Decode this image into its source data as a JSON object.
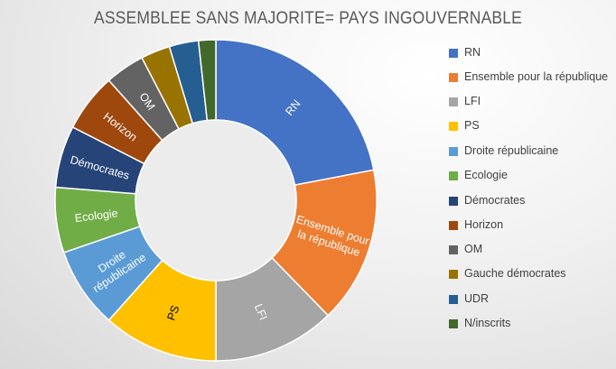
{
  "title": "ASSEMBLEE SANS MAJORITE= PAYS INGOUVERNABLE",
  "chart_data": {
    "type": "pie",
    "subtype": "doughnut",
    "title": "ASSEMBLEE SANS MAJORITE= PAYS INGOUVERNABLE",
    "categories": [
      "RN",
      "Ensemble pour la république",
      "LFI",
      "PS",
      "Droite républicaine",
      "Ecologie",
      "Démocrates",
      "Horizon",
      "OM",
      "Gauche démocrates",
      "UDR",
      "N/inscrits"
    ],
    "values": [
      127,
      91,
      71,
      67,
      47,
      38,
      36,
      34,
      23,
      17,
      17,
      10
    ],
    "colors": [
      "#4472C4",
      "#ED7D31",
      "#A5A5A5",
      "#FFC000",
      "#5B9BD5",
      "#70AD47",
      "#264478",
      "#9E480E",
      "#636363",
      "#997300",
      "#255E91",
      "#43682B"
    ],
    "data_labels": [
      "RN",
      "Ensemble pour\nla république",
      "LFI",
      "PS",
      "Droite\nrépublicaine",
      "Ecologie",
      "Démocrates",
      "Horizon",
      "OM",
      "",
      "",
      ""
    ],
    "label_colors": [
      "#ffffff",
      "#ffffff",
      "#ffffff",
      "#000000",
      "#ffffff",
      "#ffffff",
      "#ffffff",
      "#ffffff",
      "#ffffff",
      "#ffffff",
      "#ffffff",
      "#ffffff"
    ],
    "legend_position": "right",
    "start_angle": 0,
    "hole_ratio": 0.5
  },
  "legend": {
    "items": [
      {
        "label": "RN",
        "color": "#4472C4"
      },
      {
        "label": "Ensemble pour la république",
        "color": "#ED7D31"
      },
      {
        "label": "LFI",
        "color": "#A5A5A5"
      },
      {
        "label": "PS",
        "color": "#FFC000"
      },
      {
        "label": "Droite républicaine",
        "color": "#5B9BD5"
      },
      {
        "label": "Ecologie",
        "color": "#70AD47"
      },
      {
        "label": "Démocrates",
        "color": "#264478"
      },
      {
        "label": "Horizon",
        "color": "#9E480E"
      },
      {
        "label": "OM",
        "color": "#636363"
      },
      {
        "label": "Gauche démocrates",
        "color": "#997300"
      },
      {
        "label": "UDR",
        "color": "#255E91"
      },
      {
        "label": "N/inscrits",
        "color": "#43682B"
      }
    ]
  }
}
